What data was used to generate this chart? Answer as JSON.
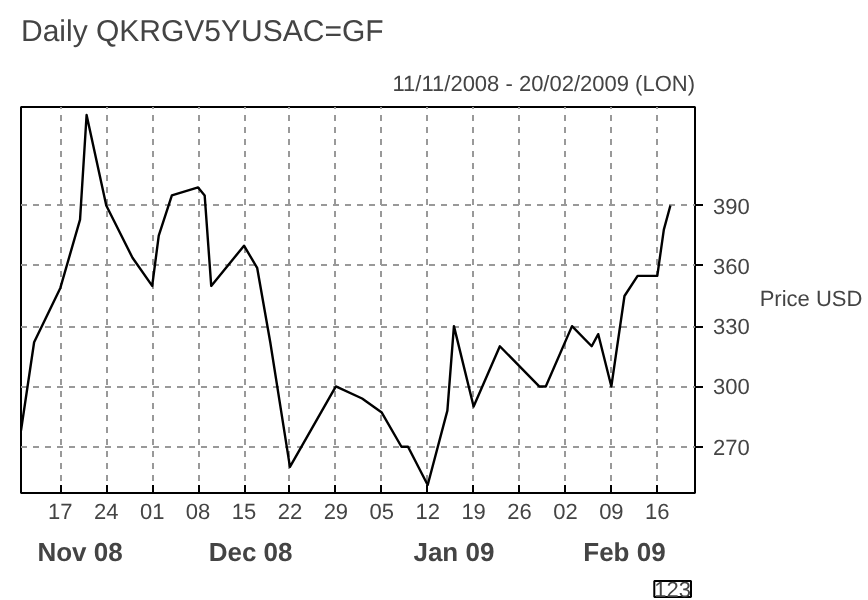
{
  "chart_data": {
    "type": "line",
    "title": "Daily QKRGV5YUSAC=GF",
    "subtitle": "11/11/2008 - 20/02/2009 (LON)",
    "ylabel": "Price USD",
    "x": [
      "2008-11-11",
      "2008-11-13",
      "2008-11-17",
      "2008-11-20",
      "2008-11-21",
      "2008-11-24",
      "2008-11-28",
      "2008-12-01",
      "2008-12-02",
      "2008-12-04",
      "2008-12-08",
      "2008-12-09",
      "2008-12-10",
      "2008-12-15",
      "2008-12-17",
      "2008-12-19",
      "2008-12-22",
      "2008-12-29",
      "2009-01-02",
      "2009-01-05",
      "2009-01-08",
      "2009-01-09",
      "2009-01-12",
      "2009-01-15",
      "2009-01-16",
      "2009-01-19",
      "2009-01-23",
      "2009-01-29",
      "2009-01-30",
      "2009-02-03",
      "2009-02-06",
      "2009-02-07",
      "2009-02-09",
      "2009-02-11",
      "2009-02-13",
      "2009-02-16",
      "2009-02-17",
      "2009-02-18"
    ],
    "series": [
      {
        "color": "#000000",
        "values": [
          278,
          322,
          349,
          383,
          435,
          390,
          364,
          350,
          375,
          395,
          399,
          395,
          350,
          370,
          359,
          322,
          260,
          300,
          294,
          287,
          270,
          270,
          251,
          288,
          330,
          290,
          320,
          300,
          300,
          330,
          320,
          326,
          300,
          345,
          355,
          355,
          378,
          390
        ]
      }
    ],
    "xlim": [
      "2008-11-11",
      "2009-02-21T18:00"
    ],
    "xticks": [
      {
        "value": "2008-11-17",
        "label": "17"
      },
      {
        "value": "2008-11-24",
        "label": "24"
      },
      {
        "value": "2008-12-01",
        "label": "01"
      },
      {
        "value": "2008-12-08",
        "label": "08"
      },
      {
        "value": "2008-12-15",
        "label": "15"
      },
      {
        "value": "2008-12-22",
        "label": "22"
      },
      {
        "value": "2008-12-29",
        "label": "29"
      },
      {
        "value": "2009-01-05",
        "label": "05"
      },
      {
        "value": "2009-01-12",
        "label": "12"
      },
      {
        "value": "2009-01-19",
        "label": "19"
      },
      {
        "value": "2009-01-26",
        "label": "26"
      },
      {
        "value": "2009-02-02",
        "label": "02"
      },
      {
        "value": "2009-02-09",
        "label": "09"
      },
      {
        "value": "2009-02-16",
        "label": "16"
      }
    ],
    "x2lim": [
      "2008-11-11",
      "2009-02-21T18:00"
    ],
    "x2ticks": [
      {
        "value": "2008-11-20",
        "label": "Nov 08"
      },
      {
        "value": "2008-12-16",
        "label": "Dec 08"
      },
      {
        "value": "2009-01-16",
        "label": "Jan 09"
      },
      {
        "value": "2009-02-11",
        "label": "Feb 09"
      }
    ],
    "ylim": [
      247,
      439
    ],
    "yticks": [
      270,
      300,
      330,
      360,
      390
    ],
    "grid": true,
    "marker": "none",
    "line_style": "solid",
    "annotations": [
      "123"
    ]
  }
}
